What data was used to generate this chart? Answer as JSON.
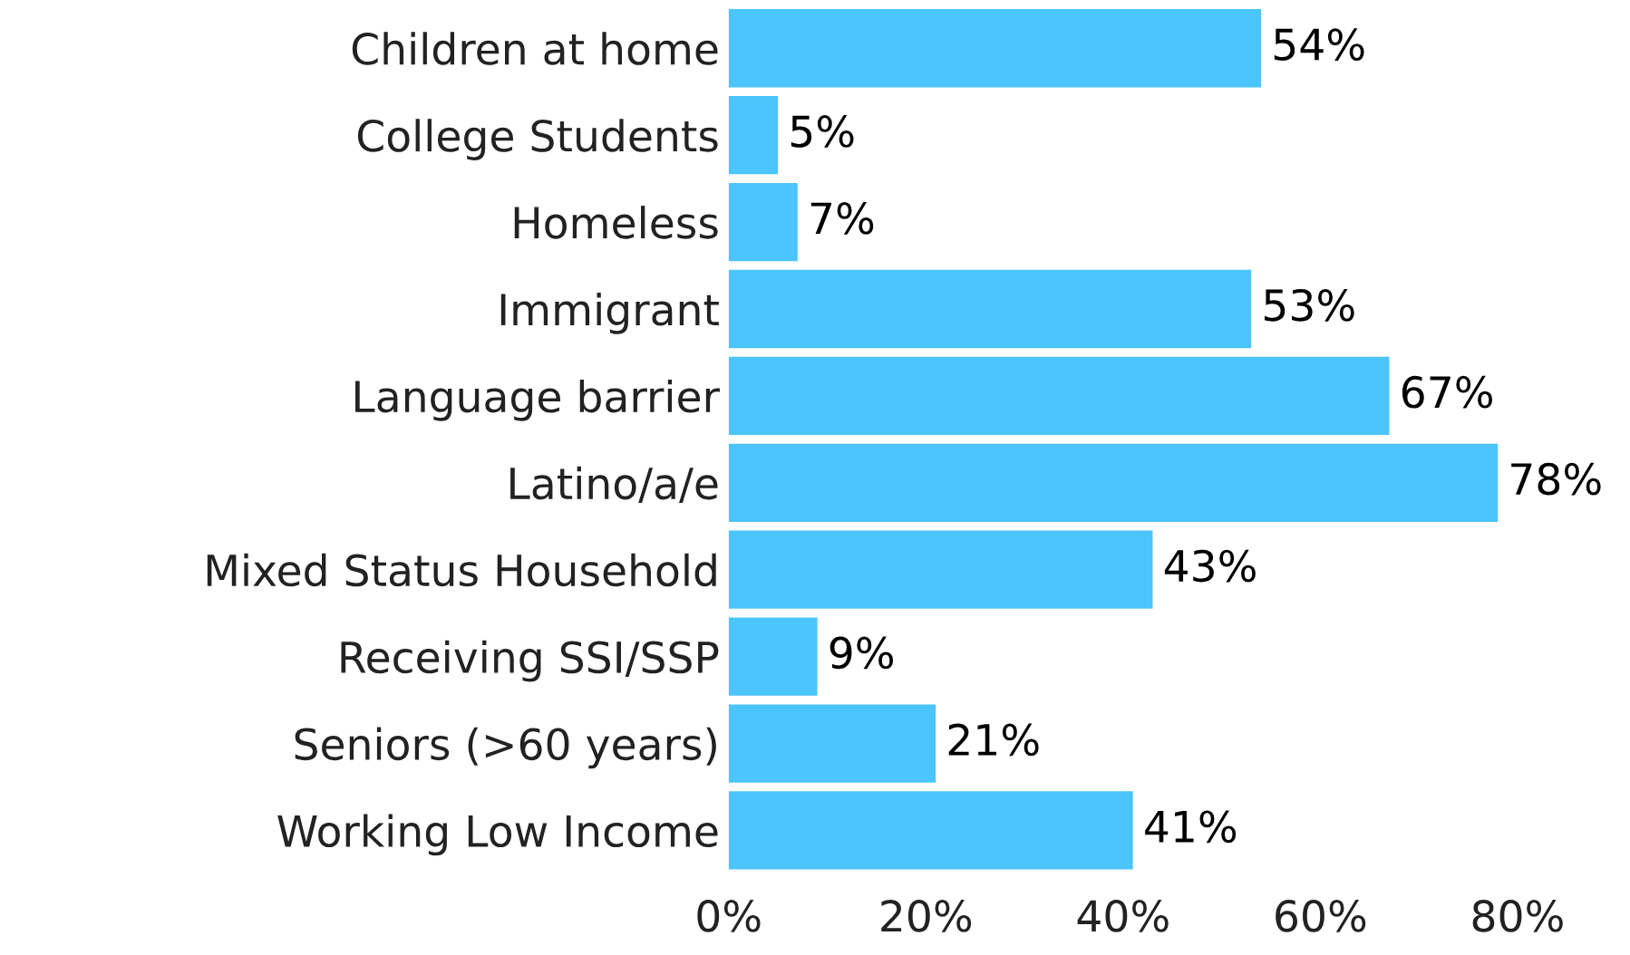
{
  "chart_data": {
    "type": "bar",
    "orientation": "horizontal",
    "categories": [
      "Children at home",
      "College Students",
      "Homeless",
      "Immigrant",
      "Language barrier",
      "Latino/a/e",
      "Mixed Status Household",
      "Receiving SSI/SSP",
      "Seniors (>60 years)",
      "Working Low Income"
    ],
    "values": [
      54,
      5,
      7,
      53,
      67,
      78,
      43,
      9,
      21,
      41
    ],
    "value_labels": [
      "54%",
      "5%",
      "7%",
      "53%",
      "67%",
      "78%",
      "43%",
      "9%",
      "21%",
      "41%"
    ],
    "color": "#4cc4fc",
    "xlim": [
      0,
      80
    ],
    "xticks": [
      {
        "value": 0,
        "label": "0%"
      },
      {
        "value": 20,
        "label": "20%"
      },
      {
        "value": 40,
        "label": "40%"
      },
      {
        "value": 60,
        "label": "60%"
      },
      {
        "value": 80,
        "label": "80%"
      }
    ],
    "grid": false,
    "legend": false
  }
}
